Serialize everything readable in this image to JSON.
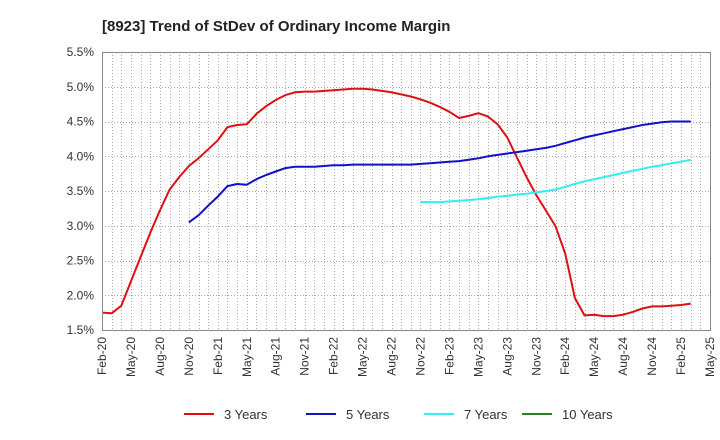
{
  "chart_data": {
    "type": "line",
    "title": "[8923]  Trend of StDev of Ordinary Income Margin",
    "xlabel": "",
    "ylabel": "",
    "x_ticks": [
      "Feb-20",
      "May-20",
      "Aug-20",
      "Nov-20",
      "Feb-21",
      "May-21",
      "Aug-21",
      "Nov-21",
      "Feb-22",
      "May-22",
      "Aug-22",
      "Nov-22",
      "Feb-23",
      "May-23",
      "Aug-23",
      "Nov-23",
      "Feb-24",
      "May-24",
      "Aug-24",
      "Nov-24",
      "Feb-25",
      "May-25"
    ],
    "y_ticks": [
      "5.5%",
      "5.0%",
      "4.5%",
      "4.0%",
      "3.5%",
      "3.0%",
      "2.5%",
      "2.0%",
      "1.5%"
    ],
    "ylim": [
      1.5,
      5.5
    ],
    "grid": true,
    "legend_position": "bottom",
    "series": [
      {
        "name": "3 Years",
        "color": "#dd1111",
        "start": "Feb-20",
        "values": [
          1.75,
          1.74,
          1.85,
          2.2,
          2.55,
          2.9,
          3.22,
          3.52,
          3.7,
          3.86,
          3.97,
          4.1,
          4.23,
          4.42,
          4.45,
          4.46,
          4.61,
          4.72,
          4.81,
          4.88,
          4.92,
          4.93,
          4.93,
          4.94,
          4.95,
          4.96,
          4.97,
          4.97,
          4.96,
          4.94,
          4.92,
          4.89,
          4.86,
          4.82,
          4.77,
          4.71,
          4.64,
          4.55,
          4.58,
          4.62,
          4.57,
          4.46,
          4.27,
          3.98,
          3.7,
          3.44,
          3.22,
          2.99,
          2.6,
          1.96,
          1.71,
          1.72,
          1.7,
          1.7,
          1.72,
          1.76,
          1.81,
          1.84,
          1.84,
          1.85,
          1.86,
          1.88
        ]
      },
      {
        "name": "5 Years",
        "color": "#1111cc",
        "start": "Feb-20",
        "values": [
          null,
          null,
          null,
          null,
          null,
          null,
          null,
          null,
          null,
          3.05,
          3.15,
          3.29,
          3.42,
          3.57,
          3.6,
          3.59,
          3.67,
          3.73,
          3.78,
          3.83,
          3.85,
          3.85,
          3.85,
          3.86,
          3.87,
          3.87,
          3.88,
          3.88,
          3.88,
          3.88,
          3.88,
          3.88,
          3.88,
          3.89,
          3.9,
          3.91,
          3.92,
          3.93,
          3.95,
          3.97,
          4.0,
          4.02,
          4.04,
          4.06,
          4.08,
          4.1,
          4.12,
          4.15,
          4.19,
          4.23,
          4.27,
          4.3,
          4.33,
          4.36,
          4.39,
          4.42,
          4.45,
          4.47,
          4.49,
          4.5,
          4.5,
          4.5
        ]
      },
      {
        "name": "7 Years",
        "color": "#33eeee",
        "start": "Feb-20",
        "values": [
          null,
          null,
          null,
          null,
          null,
          null,
          null,
          null,
          null,
          null,
          null,
          null,
          null,
          null,
          null,
          null,
          null,
          null,
          null,
          null,
          null,
          null,
          null,
          null,
          null,
          null,
          null,
          null,
          null,
          null,
          null,
          null,
          null,
          3.34,
          3.34,
          3.34,
          3.35,
          3.36,
          3.37,
          3.38,
          3.4,
          3.42,
          3.43,
          3.45,
          3.46,
          3.48,
          3.5,
          3.52,
          3.56,
          3.6,
          3.64,
          3.67,
          3.7,
          3.73,
          3.76,
          3.79,
          3.82,
          3.85,
          3.87,
          3.9,
          3.92,
          3.95
        ]
      },
      {
        "name": "10 Years",
        "color": "#228822",
        "start": "Feb-20",
        "values": []
      }
    ]
  }
}
